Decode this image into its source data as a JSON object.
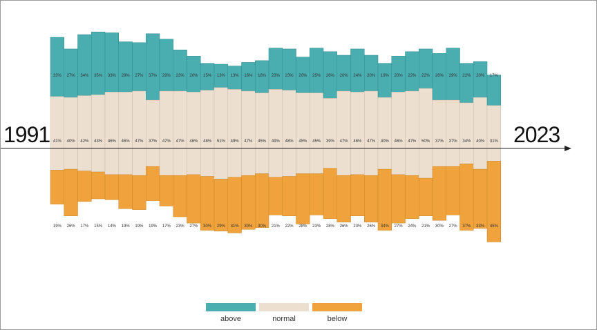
{
  "chart_data": {
    "type": "bar",
    "stacked": true,
    "x_start_label": "1991",
    "x_end_label": "2023",
    "series": [
      {
        "name": "above",
        "color": "#4aadb0",
        "values": [
          33,
          27,
          34,
          35,
          33,
          28,
          27,
          37,
          29,
          23,
          20,
          15,
          13,
          13,
          16,
          18,
          23,
          23,
          20,
          25,
          26,
          20,
          24,
          20,
          19,
          20,
          22,
          22,
          26,
          29,
          22,
          20,
          17
        ]
      },
      {
        "name": "normal",
        "color": "#ecdfd0",
        "values": [
          41,
          40,
          42,
          43,
          46,
          46,
          47,
          37,
          47,
          47,
          46,
          48,
          51,
          49,
          47,
          45,
          49,
          48,
          45,
          45,
          39,
          47,
          46,
          47,
          40,
          46,
          47,
          50,
          37,
          37,
          34,
          40,
          31
        ]
      },
      {
        "name": "below",
        "color": "#f0a33c",
        "values": [
          19,
          26,
          17,
          15,
          14,
          19,
          19,
          19,
          17,
          23,
          27,
          30,
          29,
          31,
          30,
          30,
          21,
          22,
          28,
          23,
          28,
          26,
          23,
          26,
          34,
          27,
          24,
          21,
          30,
          27,
          37,
          33,
          45
        ]
      }
    ],
    "value_suffix": "%",
    "legend": {
      "position": "bottom-center"
    },
    "grid": false
  }
}
